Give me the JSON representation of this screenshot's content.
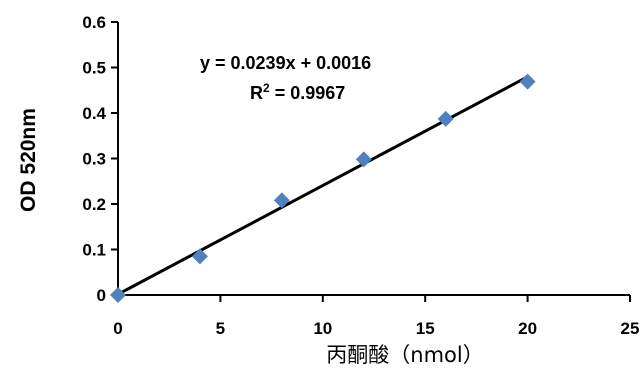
{
  "chart_data": {
    "type": "scatter",
    "xlabel": "丙酮酸（nmol）",
    "ylabel": "OD 520nm",
    "xlim": [
      0,
      25
    ],
    "ylim": [
      0,
      0.6
    ],
    "xticks": [
      0,
      5,
      10,
      15,
      20,
      25
    ],
    "yticks": [
      0,
      0.1,
      0.2,
      0.3,
      0.4,
      0.5,
      0.6
    ],
    "xtick_labels": [
      "0",
      "5",
      "10",
      "15",
      "20",
      "25"
    ],
    "ytick_labels": [
      "0",
      "0.1",
      "0.2",
      "0.3",
      "0.4",
      "0.5",
      "0.6"
    ],
    "grid": false,
    "legend": "none",
    "marker_color": "#4f81bd",
    "line_color": "#000000",
    "points": [
      {
        "x": 0,
        "y": 0.0
      },
      {
        "x": 4,
        "y": 0.085
      },
      {
        "x": 8,
        "y": 0.208
      },
      {
        "x": 12,
        "y": 0.298
      },
      {
        "x": 16,
        "y": 0.387
      },
      {
        "x": 20,
        "y": 0.469
      }
    ],
    "trendline": {
      "slope": 0.0239,
      "intercept": 0.0016,
      "x_range": [
        0,
        20
      ],
      "equation": "y = 0.0239x + 0.0016",
      "r2_label": "R",
      "r2_sup": "2",
      "r2_value": " = 0.9967"
    }
  }
}
